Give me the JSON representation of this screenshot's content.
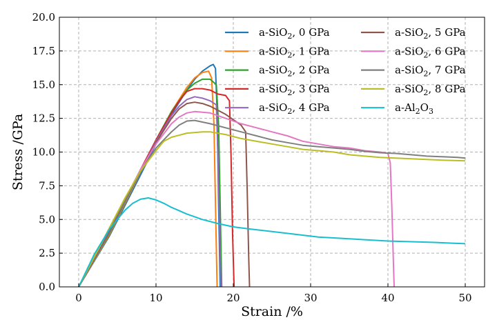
{
  "chart_data": {
    "type": "line",
    "xlabel": "Strain /%",
    "ylabel": "Stress /GPa",
    "xlim": [
      -2.5,
      52.5
    ],
    "ylim": [
      0,
      20
    ],
    "xticks": [
      0,
      10,
      20,
      30,
      40,
      50
    ],
    "yticks": [
      0.0,
      2.5,
      5.0,
      7.5,
      10.0,
      12.5,
      15.0,
      17.5,
      20.0
    ],
    "xtick_labels": [
      "0",
      "10",
      "20",
      "30",
      "40",
      "50"
    ],
    "ytick_labels": [
      "0.0",
      "2.5",
      "5.0",
      "7.5",
      "10.0",
      "12.5",
      "15.0",
      "17.5",
      "20.0"
    ],
    "grid": true,
    "legend": {
      "placement": "top-right",
      "columns": 2
    },
    "series": [
      {
        "name": "a-SiO₂, 0 GPa",
        "base": "a-SiO",
        "sub": "2",
        "suffix": ", 0 GPa",
        "color": "#1f77b4",
        "points": [
          [
            0,
            0
          ],
          [
            4,
            3.8
          ],
          [
            8,
            8.3
          ],
          [
            10,
            10.6
          ],
          [
            12,
            12.8
          ],
          [
            14,
            14.6
          ],
          [
            15,
            15.4
          ],
          [
            16,
            16.0
          ],
          [
            17,
            16.4
          ],
          [
            17.4,
            16.5
          ],
          [
            17.7,
            16.2
          ],
          [
            17.9,
            13
          ],
          [
            18.1,
            6
          ],
          [
            18.3,
            0
          ]
        ]
      },
      {
        "name": "a-SiO₂, 1 GPa",
        "base": "a-SiO",
        "sub": "2",
        "suffix": ", 1 GPa",
        "color": "#ff7f0e",
        "points": [
          [
            0,
            0
          ],
          [
            4,
            3.9
          ],
          [
            8,
            8.5
          ],
          [
            10,
            10.8
          ],
          [
            12,
            13.0
          ],
          [
            14,
            14.8
          ],
          [
            15,
            15.5
          ],
          [
            16,
            15.9
          ],
          [
            16.8,
            16.0
          ],
          [
            17.2,
            15.5
          ],
          [
            17.5,
            12
          ],
          [
            17.7,
            6
          ],
          [
            17.9,
            0
          ]
        ]
      },
      {
        "name": "a-SiO₂, 2 GPa",
        "base": "a-SiO",
        "sub": "2",
        "suffix": ", 2 GPa",
        "color": "#2ca02c",
        "points": [
          [
            0,
            0
          ],
          [
            4,
            4.0
          ],
          [
            8,
            8.6
          ],
          [
            10,
            10.9
          ],
          [
            12,
            13.0
          ],
          [
            14,
            14.6
          ],
          [
            15,
            15.1
          ],
          [
            16,
            15.4
          ],
          [
            17,
            15.4
          ],
          [
            17.8,
            15.0
          ],
          [
            18.1,
            12
          ],
          [
            18.3,
            6
          ],
          [
            18.5,
            0
          ]
        ]
      },
      {
        "name": "a-SiO₂, 3 GPa",
        "base": "a-SiO",
        "sub": "2",
        "suffix": ", 3 GPa",
        "color": "#d62728",
        "points": [
          [
            0,
            0
          ],
          [
            4,
            4.1
          ],
          [
            8,
            8.7
          ],
          [
            10,
            10.9
          ],
          [
            12,
            12.9
          ],
          [
            13,
            13.8
          ],
          [
            14,
            14.5
          ],
          [
            15,
            14.7
          ],
          [
            16,
            14.7
          ],
          [
            17,
            14.6
          ],
          [
            18,
            14.3
          ],
          [
            19,
            14.2
          ],
          [
            19.5,
            13.8
          ],
          [
            19.7,
            10
          ],
          [
            19.9,
            4
          ],
          [
            20.1,
            0
          ]
        ]
      },
      {
        "name": "a-SiO₂, 4 GPa",
        "base": "a-SiO",
        "sub": "2",
        "suffix": ", 4 GPa",
        "color": "#9467bd",
        "points": [
          [
            0,
            0
          ],
          [
            4,
            4.1
          ],
          [
            8,
            8.6
          ],
          [
            10,
            10.8
          ],
          [
            12,
            12.7
          ],
          [
            13,
            13.4
          ],
          [
            14,
            13.9
          ],
          [
            15,
            14.1
          ],
          [
            16,
            14.0
          ],
          [
            17,
            13.8
          ],
          [
            17.8,
            13.5
          ],
          [
            18.0,
            10
          ],
          [
            18.2,
            5
          ],
          [
            18.4,
            0
          ]
        ]
      },
      {
        "name": "a-SiO₂, 5 GPa",
        "base": "a-SiO",
        "sub": "2",
        "suffix": ", 5 GPa",
        "color": "#8c564b",
        "points": [
          [
            0,
            0
          ],
          [
            4,
            4.2
          ],
          [
            8,
            8.6
          ],
          [
            10,
            10.7
          ],
          [
            12,
            12.5
          ],
          [
            13,
            13.2
          ],
          [
            14,
            13.6
          ],
          [
            15,
            13.7
          ],
          [
            16,
            13.6
          ],
          [
            17,
            13.4
          ],
          [
            18,
            13.1
          ],
          [
            19,
            12.8
          ],
          [
            20,
            12.4
          ],
          [
            21,
            12.0
          ],
          [
            21.6,
            11.5
          ],
          [
            21.8,
            7
          ],
          [
            22.0,
            2
          ],
          [
            22.1,
            0
          ]
        ]
      },
      {
        "name": "a-SiO₂, 6 GPa",
        "base": "a-SiO",
        "sub": "2",
        "suffix": ", 6 GPa",
        "color": "#e377c2",
        "points": [
          [
            0,
            0
          ],
          [
            4,
            4.3
          ],
          [
            8,
            8.7
          ],
          [
            10,
            10.6
          ],
          [
            12,
            12.1
          ],
          [
            13,
            12.6
          ],
          [
            14,
            12.9
          ],
          [
            15,
            13.0
          ],
          [
            17,
            12.9
          ],
          [
            19,
            12.5
          ],
          [
            21,
            12.1
          ],
          [
            23,
            11.8
          ],
          [
            25,
            11.5
          ],
          [
            27,
            11.2
          ],
          [
            29,
            10.8
          ],
          [
            31,
            10.6
          ],
          [
            33,
            10.4
          ],
          [
            35,
            10.3
          ],
          [
            37,
            10.1
          ],
          [
            39,
            10.0
          ],
          [
            40,
            9.9
          ],
          [
            40.3,
            9.2
          ],
          [
            40.5,
            6
          ],
          [
            40.7,
            2
          ],
          [
            40.8,
            0
          ]
        ]
      },
      {
        "name": "a-SiO₂, 7 GPa",
        "base": "a-SiO",
        "sub": "2",
        "suffix": ", 7 GPa",
        "color": "#7f7f7f",
        "points": [
          [
            0,
            0
          ],
          [
            4,
            4.3
          ],
          [
            8,
            8.5
          ],
          [
            10,
            10.3
          ],
          [
            12,
            11.5
          ],
          [
            13,
            12.0
          ],
          [
            14,
            12.3
          ],
          [
            15,
            12.35
          ],
          [
            17,
            12.1
          ],
          [
            19,
            11.8
          ],
          [
            21,
            11.5
          ],
          [
            23,
            11.2
          ],
          [
            25,
            10.9
          ],
          [
            27,
            10.7
          ],
          [
            29,
            10.5
          ],
          [
            31,
            10.4
          ],
          [
            33,
            10.3
          ],
          [
            35,
            10.2
          ],
          [
            37,
            10.05
          ],
          [
            39,
            9.95
          ],
          [
            41,
            9.9
          ],
          [
            43,
            9.8
          ],
          [
            45,
            9.7
          ],
          [
            47,
            9.65
          ],
          [
            49,
            9.6
          ],
          [
            50,
            9.55
          ]
        ]
      },
      {
        "name": "a-SiO₂, 8 GPa",
        "base": "a-SiO",
        "sub": "2",
        "suffix": ", 8 GPa",
        "color": "#bcbd22",
        "points": [
          [
            0,
            0
          ],
          [
            4,
            4.4
          ],
          [
            6,
            6.6
          ],
          [
            8,
            8.6
          ],
          [
            10,
            10.1
          ],
          [
            11,
            10.8
          ],
          [
            12,
            11.1
          ],
          [
            14,
            11.4
          ],
          [
            16,
            11.5
          ],
          [
            17,
            11.5
          ],
          [
            19,
            11.3
          ],
          [
            21,
            11.0
          ],
          [
            23,
            10.8
          ],
          [
            25,
            10.6
          ],
          [
            27,
            10.4
          ],
          [
            29,
            10.2
          ],
          [
            31,
            10.1
          ],
          [
            33,
            10.0
          ],
          [
            35,
            9.8
          ],
          [
            37,
            9.7
          ],
          [
            39,
            9.6
          ],
          [
            41,
            9.55
          ],
          [
            43,
            9.5
          ],
          [
            45,
            9.45
          ],
          [
            47,
            9.4
          ],
          [
            50,
            9.35
          ]
        ]
      },
      {
        "name": "a-Al₂O₃",
        "base": "a-Al",
        "sub": "2",
        "suffix": "O",
        "sub2": "3",
        "color": "#17becf",
        "points": [
          [
            0,
            0
          ],
          [
            2,
            2.4
          ],
          [
            4,
            4.3
          ],
          [
            6,
            5.7
          ],
          [
            7,
            6.2
          ],
          [
            8,
            6.5
          ],
          [
            9,
            6.6
          ],
          [
            10,
            6.45
          ],
          [
            11,
            6.2
          ],
          [
            12,
            5.9
          ],
          [
            14,
            5.4
          ],
          [
            16,
            5.0
          ],
          [
            18,
            4.7
          ],
          [
            20,
            4.45
          ],
          [
            22,
            4.3
          ],
          [
            25,
            4.1
          ],
          [
            28,
            3.9
          ],
          [
            31,
            3.7
          ],
          [
            34,
            3.6
          ],
          [
            37,
            3.5
          ],
          [
            40,
            3.4
          ],
          [
            43,
            3.35
          ],
          [
            46,
            3.3
          ],
          [
            48,
            3.25
          ],
          [
            50,
            3.2
          ]
        ]
      }
    ]
  }
}
